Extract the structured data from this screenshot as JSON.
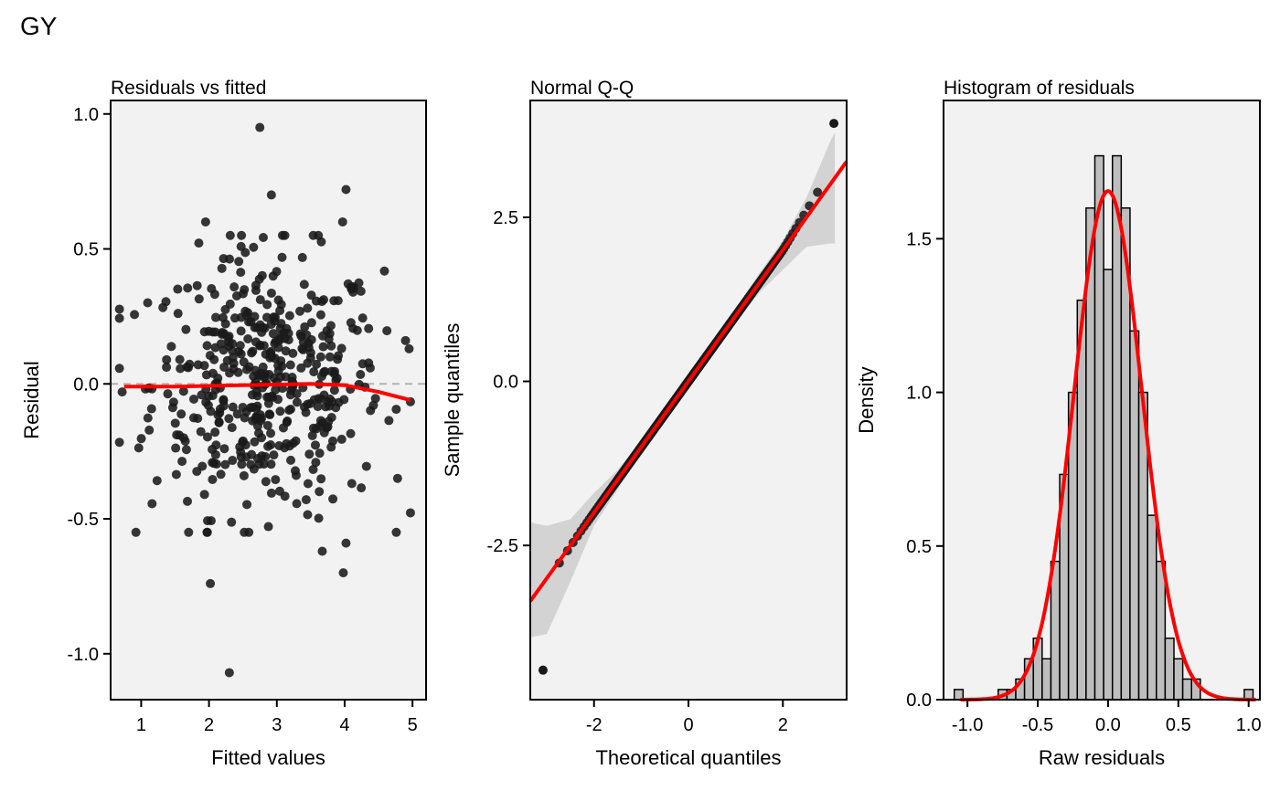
{
  "figure": {
    "title": "GY"
  },
  "colors": {
    "panel_bg": "#f2f2f2",
    "point": "#1a1a1a",
    "fit_line": "#ff0000",
    "ref_line": "#b3b3b3",
    "band": "#d3d3d3",
    "bar_fill": "#bebebe",
    "bar_edge": "#000000"
  },
  "chart_data": [
    {
      "type": "scatter",
      "title": "Residuals vs fitted",
      "xlabel": "Fitted values",
      "ylabel": "Residual",
      "xlim": [
        0.55,
        5.2
      ],
      "ylim": [
        -1.17,
        1.05
      ],
      "xticks": [
        1,
        2,
        3,
        4,
        5
      ],
      "yticks": [
        -1.0,
        -0.5,
        0.0,
        0.5,
        1.0
      ],
      "ytick_labels": [
        "-1.0",
        "-0.5",
        "0.0",
        "0.5",
        "1.0"
      ],
      "reference_line": {
        "y": 0,
        "style": "dashed"
      },
      "n_points": 480,
      "x_range": [
        0.68,
        4.97
      ],
      "residual_sd": 0.24,
      "highlighted_points": [
        {
          "x": 2.75,
          "y": 0.95
        },
        {
          "x": 2.92,
          "y": 0.7
        },
        {
          "x": 4.02,
          "y": 0.72
        },
        {
          "x": 1.95,
          "y": 0.6
        },
        {
          "x": 3.97,
          "y": 0.6
        },
        {
          "x": 2.3,
          "y": -1.07
        },
        {
          "x": 2.02,
          "y": -0.74
        },
        {
          "x": 3.98,
          "y": -0.7
        },
        {
          "x": 3.67,
          "y": -0.62
        },
        {
          "x": 4.02,
          "y": -0.59
        },
        {
          "x": 1.7,
          "y": -0.55
        },
        {
          "x": 4.95,
          "y": 0.13
        },
        {
          "x": 0.72,
          "y": -0.03
        },
        {
          "x": 4.78,
          "y": -0.35
        }
      ],
      "smooth_line": {
        "x": [
          0.75,
          1.5,
          2.5,
          3.5,
          4.0,
          4.5,
          4.97
        ],
        "y": [
          -0.01,
          -0.01,
          -0.005,
          0.0,
          -0.005,
          -0.03,
          -0.06
        ]
      }
    },
    {
      "type": "scatter",
      "title": "Normal Q-Q",
      "xlabel": "Theoretical quantiles",
      "ylabel": "Sample quantiles",
      "xlim": [
        -3.35,
        3.35
      ],
      "ylim": [
        -4.85,
        4.28
      ],
      "xticks": [
        -2,
        0,
        2
      ],
      "yticks": [
        -2.5,
        0.0,
        2.5
      ],
      "ytick_labels": [
        "-2.5",
        "0.0",
        "2.5"
      ],
      "n_points": 480,
      "reference_line": {
        "intercept": 0,
        "slope": 1.0
      },
      "lowest_point": {
        "x": -3.08,
        "y": -4.4
      },
      "highest_point": {
        "x": 3.08,
        "y": 3.93
      },
      "confidence_band": {
        "x": [
          -3.35,
          -3.0,
          -2.5,
          -2.0,
          -1.5,
          -1.0,
          0.0,
          1.0,
          1.5,
          2.0,
          2.5,
          3.0,
          3.1
        ],
        "upper": [
          -2.15,
          -2.2,
          -2.1,
          -1.7,
          -1.35,
          -0.9,
          0.05,
          1.1,
          1.65,
          2.15,
          2.8,
          3.65,
          3.8
        ],
        "lower": [
          -3.9,
          -3.85,
          -3.05,
          -2.2,
          -1.65,
          -1.1,
          -0.05,
          0.9,
          1.35,
          1.7,
          2.05,
          2.1,
          2.1
        ]
      }
    },
    {
      "type": "bar",
      "title": "Histogram of residuals",
      "xlabel": "Raw residuals",
      "ylabel": "Density",
      "xlim": [
        -1.17,
        1.08
      ],
      "ylim": [
        0,
        1.95
      ],
      "xticks": [
        -1.0,
        -0.5,
        0.0,
        0.5,
        1.0
      ],
      "xtick_labels": [
        "-1.0",
        "-0.5",
        "0.0",
        "0.5",
        "1.0"
      ],
      "yticks": [
        0.0,
        0.5,
        1.0,
        1.5
      ],
      "ytick_labels": [
        "0.0",
        "0.5",
        "1.0",
        "1.5"
      ],
      "bin_width": 0.0625,
      "bins_start": [
        -1.09375,
        -1.03125,
        -0.96875,
        -0.90625,
        -0.84375,
        -0.78125,
        -0.71875,
        -0.65625,
        -0.59375,
        -0.53125,
        -0.46875,
        -0.40625,
        -0.34375,
        -0.28125,
        -0.21875,
        -0.15625,
        -0.09375,
        -0.03125,
        0.03125,
        0.09375,
        0.15625,
        0.21875,
        0.28125,
        0.34375,
        0.40625,
        0.46875,
        0.53125,
        0.59375,
        0.65625,
        0.71875,
        0.78125,
        0.84375,
        0.90625,
        0.96875
      ],
      "density": [
        0.033,
        0,
        0,
        0,
        0,
        0.033,
        0.033,
        0.067,
        0.133,
        0.2,
        0.133,
        0.45,
        0.733,
        1.0,
        1.3,
        1.6,
        1.77,
        1.4,
        1.77,
        1.6,
        1.2,
        1.0,
        0.6,
        0.45,
        0.2,
        0.133,
        0.067,
        0.067,
        0,
        0,
        0,
        0,
        0,
        0.033
      ],
      "normal_curve": {
        "mean": 0.0,
        "sd": 0.241
      }
    }
  ]
}
